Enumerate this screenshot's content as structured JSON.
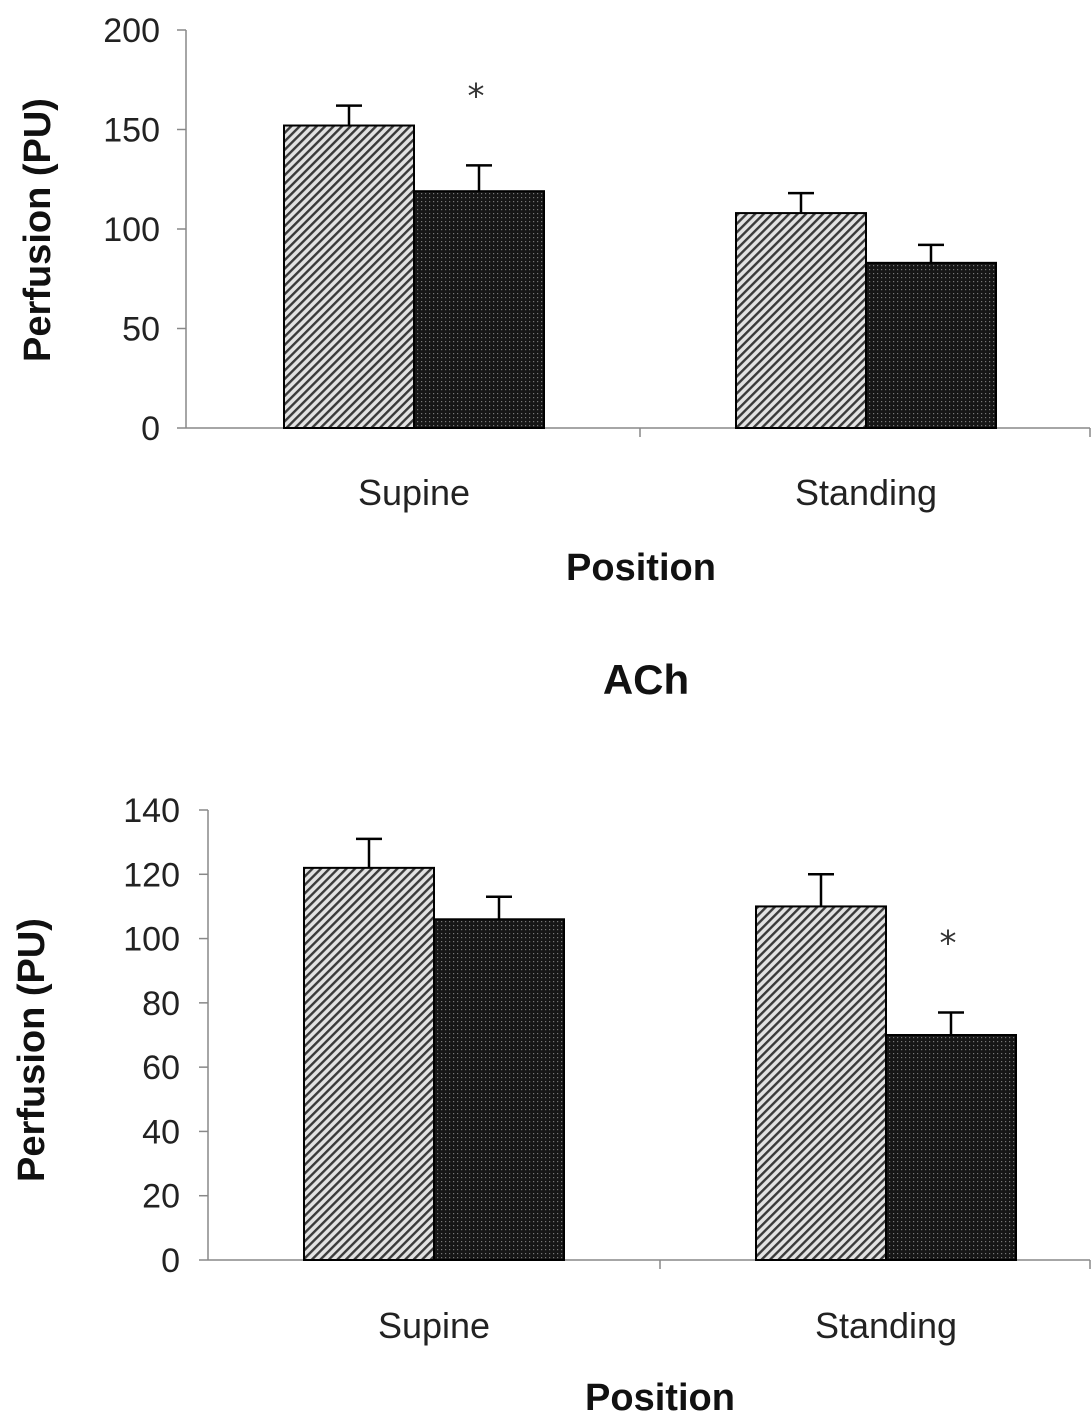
{
  "chart_data": [
    {
      "type": "bar",
      "title": "",
      "xlabel": "Position",
      "ylabel": "Perfusion (PU)",
      "ylim": [
        0,
        200
      ],
      "yticks": [
        0,
        50,
        100,
        150,
        200
      ],
      "categories": [
        "Supine",
        "Standing"
      ],
      "series": [
        {
          "values": [
            152,
            108
          ],
          "errors": [
            10,
            10
          ],
          "pattern": "diagonal-hatch"
        },
        {
          "values": [
            119,
            83
          ],
          "errors": [
            13,
            9
          ],
          "pattern": "dark-dots"
        }
      ],
      "annotations": [
        {
          "text": "*",
          "category": 0,
          "series": 1
        }
      ]
    },
    {
      "type": "bar",
      "title": "ACh",
      "xlabel": "Position",
      "ylabel": "Perfusion (PU)",
      "ylim": [
        0,
        140
      ],
      "yticks": [
        0,
        20,
        40,
        60,
        80,
        100,
        120,
        140
      ],
      "categories": [
        "Supine",
        "Standing"
      ],
      "series": [
        {
          "values": [
            122,
            110
          ],
          "errors": [
            9,
            10
          ],
          "pattern": "diagonal-hatch"
        },
        {
          "values": [
            106,
            70
          ],
          "errors": [
            7,
            7
          ],
          "pattern": "dark-dots"
        }
      ],
      "annotations": [
        {
          "text": "*",
          "category": 1,
          "series": 1
        }
      ]
    }
  ]
}
